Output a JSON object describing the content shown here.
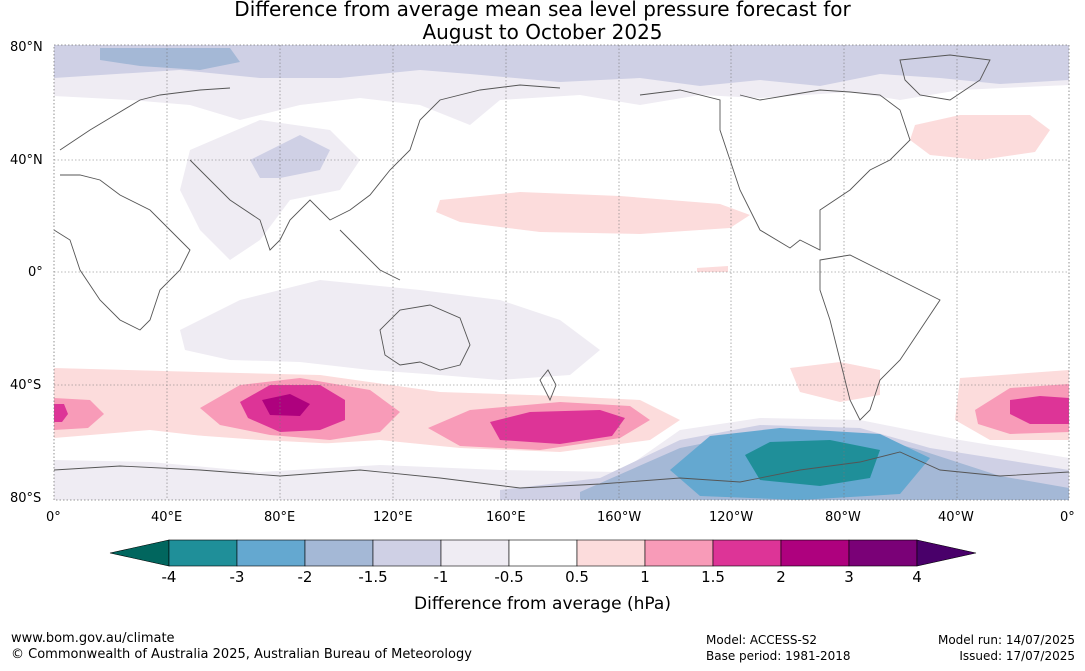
{
  "title_line1": "Difference from average mean sea level pressure forecast for",
  "title_line2": "August to October 2025",
  "lat_labels": [
    "80°N",
    "40°N",
    "0°",
    "40°S",
    "80°S"
  ],
  "lon_labels": [
    "0°",
    "40°E",
    "80°E",
    "120°E",
    "160°E",
    "160°W",
    "120°W",
    "80°W",
    "40°W",
    "0°"
  ],
  "colorbar": {
    "ticks": [
      "-4",
      "-3",
      "-2",
      "-1.5",
      "-1",
      "-0.5",
      "0.5",
      "1",
      "1.5",
      "2",
      "3",
      "4"
    ],
    "colors": [
      "#01665e",
      "#1f8f99",
      "#64a8d0",
      "#a4b8d6",
      "#cfd0e5",
      "#efecf3",
      "#ffffff",
      "#fcdcdc",
      "#f89bb8",
      "#dd3497",
      "#ae017e",
      "#7a0177",
      "#49006a"
    ],
    "title": "Difference from average (hPa)"
  },
  "footer": {
    "website": "www.bom.gov.au/climate",
    "copyright": "© Commonwealth of Australia 2025, Australian Bureau of Meteorology",
    "model": "Model: ACCESS-S2",
    "base_period": "Base period: 1981-2018",
    "model_run": "Model run: 14/07/2025",
    "issued": "Issued: 17/07/2025"
  }
}
